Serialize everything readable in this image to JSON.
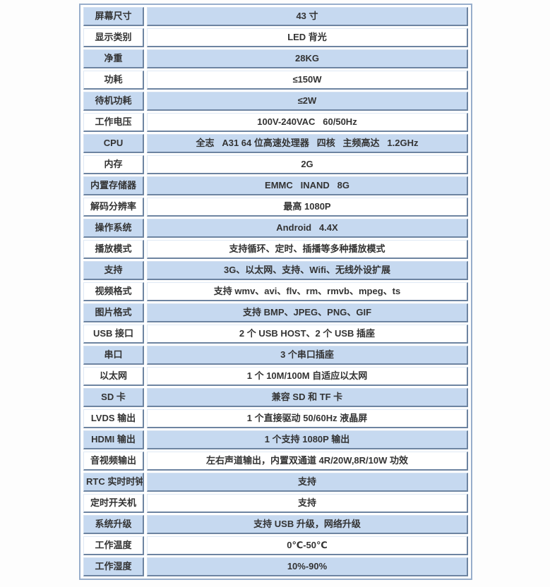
{
  "colors": {
    "row_shaded_bg": "#c6d9f0",
    "row_plain_bg": "#ffffff",
    "cell_border_dark": "#6d84a1",
    "frame_border": "#98aecb",
    "text_color": "#333333"
  },
  "spec_table": {
    "rows": [
      {
        "label": "屏幕尺寸",
        "value": "43 寸"
      },
      {
        "label": "显示类别",
        "value": "LED 背光"
      },
      {
        "label": "净重",
        "value": "28KG"
      },
      {
        "label": "功耗",
        "value": "≤150W"
      },
      {
        "label": "待机功耗",
        "value": "≤2W"
      },
      {
        "label": "工作电压",
        "value": "100V-240VAC   60/50Hz"
      },
      {
        "label": "CPU",
        "value": "全志   A31 64 位高速处理器   四核   主频高达   1.2GHz"
      },
      {
        "label": "内存",
        "value": "2G"
      },
      {
        "label": "内置存储器",
        "value": "EMMC   INAND   8G"
      },
      {
        "label": "解码分辨率",
        "value": "最高 1080P"
      },
      {
        "label": "操作系统",
        "value": "Android   4.4X"
      },
      {
        "label": "播放模式",
        "value": "支持循环、定时、插播等多种播放模式"
      },
      {
        "label": "支持",
        "value": "3G、以太网、支持、Wifi、无线外设扩展"
      },
      {
        "label": "视频格式",
        "value": "支持 wmv、avi、flv、rm、rmvb、mpeg、ts"
      },
      {
        "label": "图片格式",
        "value": "支持 BMP、JPEG、PNG、GIF"
      },
      {
        "label": "USB 接口",
        "value": "2 个 USB HOST、2 个 USB 插座"
      },
      {
        "label": "串口",
        "value": "3 个串口插座"
      },
      {
        "label": "以太网",
        "value": "1 个 10M/100M 自适应以太网"
      },
      {
        "label": "SD 卡",
        "value": "兼容 SD 和 TF 卡"
      },
      {
        "label": "LVDS 输出",
        "value": "1 个直接驱动 50/60Hz 液晶屏"
      },
      {
        "label": "HDMI 输出",
        "value": "1 个支持 1080P 输出"
      },
      {
        "label": "音视频输出",
        "value": "左右声道输出，内置双通道 4R/20W,8R/10W 功效"
      },
      {
        "label": "RTC 实时时钟",
        "value": "支持"
      },
      {
        "label": "定时开关机",
        "value": "支持"
      },
      {
        "label": "系统升级",
        "value": "支持 USB 升级，网络升级"
      },
      {
        "label": "工作温度",
        "value": "0℃-50℃"
      },
      {
        "label": "工作湿度",
        "value": "10%-90%"
      }
    ]
  }
}
